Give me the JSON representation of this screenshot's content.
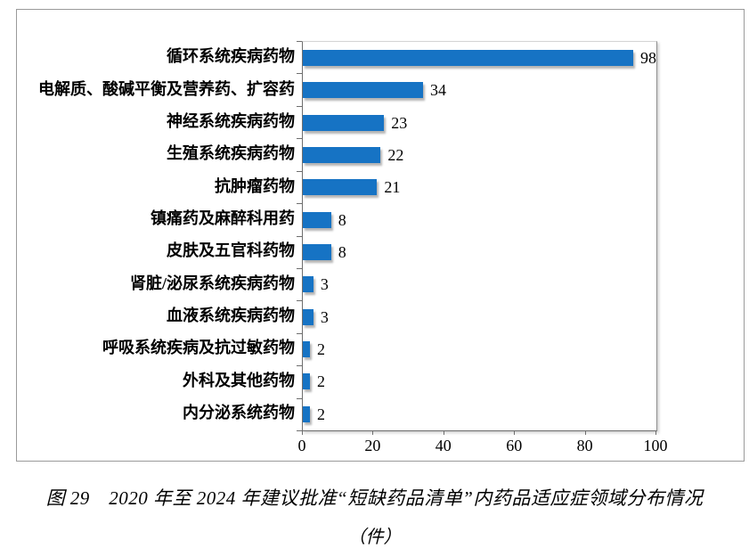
{
  "chart_data": {
    "type": "bar",
    "orientation": "horizontal",
    "categories": [
      "循环系统疾病药物",
      "电解质、酸碱平衡及营养药、扩容药",
      "神经系统疾病药物",
      "生殖系统疾病药物",
      "抗肿瘤药物",
      "镇痛药及麻醉科用药",
      "皮肤及五官科药物",
      "肾脏/泌尿系统疾病药物",
      "血液系统疾病药物",
      "呼吸系统疾病及抗过敏药物",
      "外科及其他药物",
      "内分泌系统药物"
    ],
    "values": [
      98,
      34,
      23,
      22,
      21,
      8,
      8,
      3,
      3,
      2,
      2,
      2
    ],
    "xticks": [
      0,
      20,
      40,
      60,
      80,
      100
    ],
    "xlim": [
      0,
      100
    ],
    "grid": false,
    "value_labels": true,
    "legend": "none",
    "bar_color": "#1673c4",
    "axis_color": "#6e6e6e",
    "title": "图 29　2020 年至 2024 年建议批准“短缺药品清单”内药品适应症领域分布情况",
    "unit_label": "（件）"
  },
  "caption": {
    "line1": "图 29　2020 年至 2024 年建议批准“短缺药品清单”内药品适应症领域分布情况",
    "line2": "（件）"
  }
}
